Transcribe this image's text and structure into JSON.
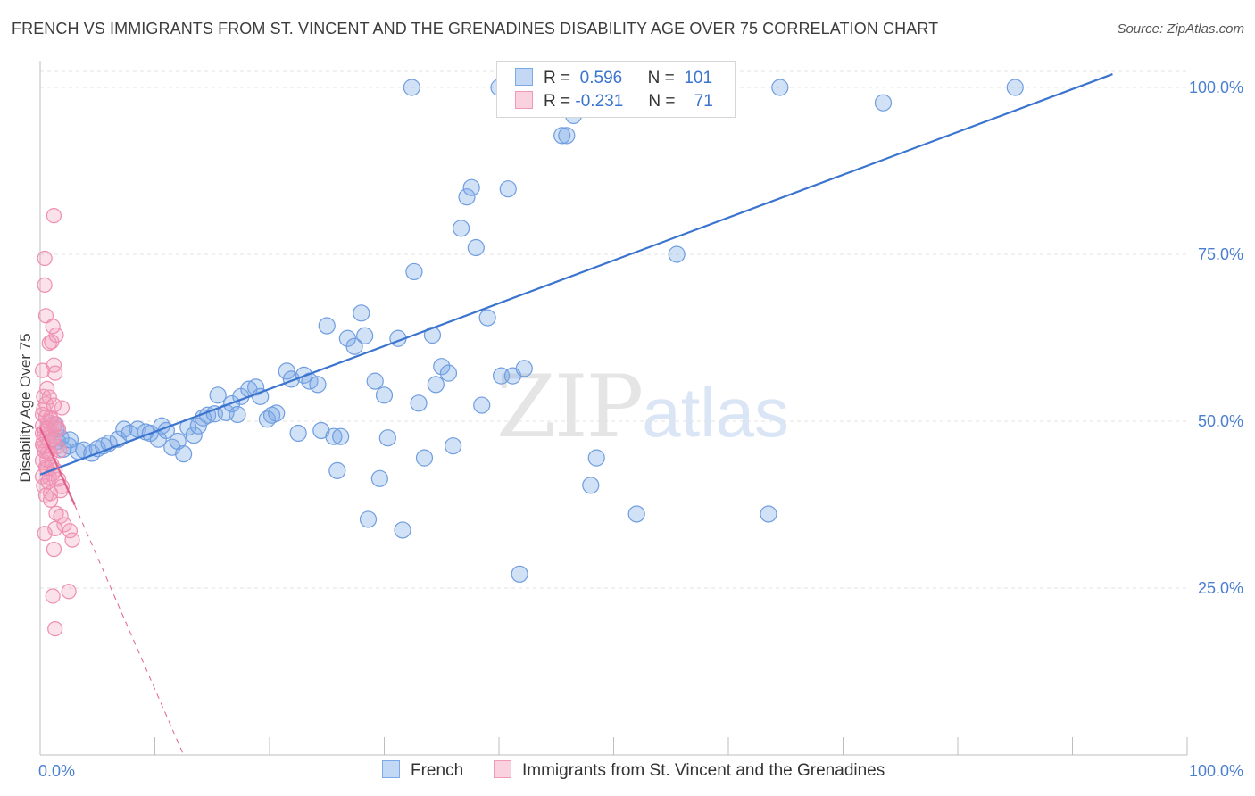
{
  "header": {
    "title": "FRENCH VS IMMIGRANTS FROM ST. VINCENT AND THE GRENADINES DISABILITY AGE OVER 75 CORRELATION CHART",
    "source": "Source: ZipAtlas.com"
  },
  "watermark": {
    "zip": "ZIP",
    "atlas": "atlas"
  },
  "legend": {
    "rows": [
      {
        "r_label": "R =",
        "r_value": "0.596",
        "n_label": "N =",
        "n_value": "101",
        "color": "#7ba8e6"
      },
      {
        "r_label": "R =",
        "r_value": "-0.231",
        "n_label": "N =",
        "n_value": "71",
        "color": "#f19ab8"
      }
    ]
  },
  "bottom_legend": [
    {
      "label": "French",
      "color": "#7ba8e6"
    },
    {
      "label": "Immigrants from St. Vincent and the Grenadines",
      "color": "#f19ab8"
    }
  ],
  "chart_data": {
    "type": "scatter",
    "title": "FRENCH VS IMMIGRANTS FROM ST. VINCENT AND THE GRENADINES DISABILITY AGE OVER 75 CORRELATION CHART",
    "ylabel": "Disability Age Over 75",
    "xlabel": "",
    "xlim": [
      0,
      100
    ],
    "ylim": [
      0,
      102
    ],
    "x_tick_labels": [
      "0.0%",
      "100.0%"
    ],
    "y_ticks": [
      25,
      50,
      75,
      100
    ],
    "y_tick_labels": [
      "25.0%",
      "50.0%",
      "75.0%",
      "100.0%"
    ],
    "grid": true,
    "legend_position": "top-center",
    "series": [
      {
        "name": "French",
        "color": "#7ba8e6",
        "line_color": "#3b74cf",
        "trend": {
          "x": [
            0,
            93.5
          ],
          "y": [
            42,
            102
          ]
        },
        "points": [
          [
            1.2,
            49.5
          ],
          [
            1.5,
            47
          ],
          [
            2,
            45.8
          ],
          [
            2.5,
            46.3
          ],
          [
            3.3,
            45.5
          ],
          [
            3.8,
            45.7
          ],
          [
            4.5,
            45.2
          ],
          [
            5,
            45.9
          ],
          [
            5.5,
            46.3
          ],
          [
            6,
            46.7
          ],
          [
            6.8,
            47.3
          ],
          [
            7.3,
            48.8
          ],
          [
            7.8,
            48.2
          ],
          [
            8.5,
            48.8
          ],
          [
            9.2,
            48.4
          ],
          [
            9.6,
            48.2
          ],
          [
            10.3,
            47.3
          ],
          [
            10.6,
            49.3
          ],
          [
            11,
            48.6
          ],
          [
            11.5,
            46.1
          ],
          [
            12,
            47
          ],
          [
            12.5,
            45.1
          ],
          [
            12.9,
            49.1
          ],
          [
            13.4,
            47.9
          ],
          [
            13.8,
            49.3
          ],
          [
            14.2,
            50.5
          ],
          [
            14.6,
            50.9
          ],
          [
            15.2,
            51.1
          ],
          [
            15.5,
            53.9
          ],
          [
            16.2,
            51.3
          ],
          [
            16.7,
            52.6
          ],
          [
            17.2,
            51
          ],
          [
            17.5,
            53.7
          ],
          [
            18.2,
            54.8
          ],
          [
            18.8,
            55.1
          ],
          [
            19.2,
            53.7
          ],
          [
            19.8,
            50.3
          ],
          [
            20.2,
            50.9
          ],
          [
            20.6,
            51.2
          ],
          [
            21.5,
            57.5
          ],
          [
            21.9,
            56.3
          ],
          [
            22.5,
            48.2
          ],
          [
            23,
            56.9
          ],
          [
            23.5,
            56
          ],
          [
            24.2,
            55.5
          ],
          [
            24.5,
            48.6
          ],
          [
            25,
            64.3
          ],
          [
            25.6,
            47.7
          ],
          [
            25.9,
            42.6
          ],
          [
            26.2,
            47.7
          ],
          [
            26.8,
            62.4
          ],
          [
            27.4,
            61.2
          ],
          [
            28,
            66.2
          ],
          [
            28.3,
            62.8
          ],
          [
            28.6,
            35.3
          ],
          [
            29.2,
            56
          ],
          [
            29.6,
            41.4
          ],
          [
            30,
            53.9
          ],
          [
            30.3,
            47.5
          ],
          [
            31.2,
            62.4
          ],
          [
            31.6,
            33.7
          ],
          [
            32.4,
            100
          ],
          [
            32.6,
            72.4
          ],
          [
            33,
            52.7
          ],
          [
            33.5,
            44.5
          ],
          [
            34.2,
            62.9
          ],
          [
            34.5,
            55.5
          ],
          [
            35,
            58.2
          ],
          [
            35.6,
            57.2
          ],
          [
            36,
            46.3
          ],
          [
            36.7,
            78.9
          ],
          [
            37.2,
            83.6
          ],
          [
            37.6,
            85
          ],
          [
            38,
            76
          ],
          [
            38.5,
            52.4
          ],
          [
            39,
            65.5
          ],
          [
            40,
            100
          ],
          [
            40.2,
            56.8
          ],
          [
            40.8,
            84.8
          ],
          [
            41.2,
            56.8
          ],
          [
            41.8,
            27.1
          ],
          [
            42.2,
            57.9
          ],
          [
            43,
            100
          ],
          [
            45,
            100
          ],
          [
            45.5,
            92.8
          ],
          [
            45.9,
            92.8
          ],
          [
            46.5,
            95.8
          ],
          [
            47,
            100
          ],
          [
            48,
            40.4
          ],
          [
            48.5,
            44.5
          ],
          [
            50,
            100
          ],
          [
            52,
            36.1
          ],
          [
            55.5,
            75
          ],
          [
            57.5,
            100
          ],
          [
            63.5,
            36.1
          ],
          [
            64.5,
            100
          ],
          [
            73.5,
            97.7
          ],
          [
            85,
            100
          ],
          [
            1.8,
            47.5
          ],
          [
            1.4,
            48.8
          ],
          [
            2.6,
            47.2
          ]
        ],
        "radius": 9
      },
      {
        "name": "Immigrants from St. Vincent and the Grenadines",
        "color": "#f19ab8",
        "line_color": "#e0608c",
        "trend": {
          "x": [
            0,
            3
          ],
          "y": [
            49,
            37.5
          ]
        },
        "trend_dashed": {
          "x": [
            3,
            12.5
          ],
          "y": [
            37.5,
            0
          ]
        },
        "points": [
          [
            0.2,
            49.3
          ],
          [
            0.4,
            48.5
          ],
          [
            0.2,
            51
          ],
          [
            0.5,
            52.6
          ],
          [
            0.3,
            53.7
          ],
          [
            0.6,
            47.5
          ],
          [
            0.3,
            46.2
          ],
          [
            0.7,
            45.3
          ],
          [
            0.2,
            44.1
          ],
          [
            0.5,
            43.1
          ],
          [
            0.8,
            41.6
          ],
          [
            0.3,
            40.3
          ],
          [
            0.9,
            39.2
          ],
          [
            0.2,
            57.6
          ],
          [
            0.5,
            65.8
          ],
          [
            0.4,
            70.4
          ],
          [
            0.4,
            74.4
          ],
          [
            1.2,
            80.8
          ],
          [
            0.8,
            61.7
          ],
          [
            1,
            61.9
          ],
          [
            1.4,
            62.9
          ],
          [
            1.1,
            64.2
          ],
          [
            1.2,
            58.4
          ],
          [
            1.3,
            57.2
          ],
          [
            0.6,
            54.9
          ],
          [
            0.8,
            53.6
          ],
          [
            1,
            50.2
          ],
          [
            1.2,
            49.2
          ],
          [
            0.9,
            48.4
          ],
          [
            1.3,
            47.8
          ],
          [
            1.5,
            46.2
          ],
          [
            1.7,
            45.6
          ],
          [
            0.6,
            42.9
          ],
          [
            1.1,
            42.1
          ],
          [
            1.6,
            41.3
          ],
          [
            1.9,
            40.2
          ],
          [
            0.5,
            38.9
          ],
          [
            0.9,
            38.2
          ],
          [
            1.4,
            36.2
          ],
          [
            1.8,
            35.8
          ],
          [
            2.1,
            34.5
          ],
          [
            1.3,
            33.9
          ],
          [
            2.6,
            33.6
          ],
          [
            0.4,
            33.2
          ],
          [
            2.8,
            32.2
          ],
          [
            1.2,
            30.8
          ],
          [
            2.5,
            24.5
          ],
          [
            1.1,
            23.8
          ],
          [
            1.3,
            18.9
          ],
          [
            0.3,
            47.1
          ],
          [
            0.7,
            49.9
          ],
          [
            0.5,
            50.6
          ],
          [
            0.2,
            48.2
          ],
          [
            0.8,
            46.9
          ],
          [
            1.6,
            48.8
          ],
          [
            1.9,
            52
          ],
          [
            0.4,
            45.5
          ],
          [
            0.6,
            44.2
          ],
          [
            1,
            43.5
          ],
          [
            1.3,
            42.7
          ],
          [
            0.2,
            41.7
          ],
          [
            0.7,
            40.9
          ],
          [
            1.8,
            39.6
          ],
          [
            0.3,
            51.8
          ],
          [
            1.2,
            52.4
          ],
          [
            0.9,
            50.5
          ],
          [
            1.4,
            49.6
          ],
          [
            0.6,
            48.9
          ],
          [
            1.1,
            47.3
          ],
          [
            0.2,
            46.5
          ],
          [
            0.9,
            45.1
          ]
        ],
        "radius": 8
      }
    ]
  }
}
